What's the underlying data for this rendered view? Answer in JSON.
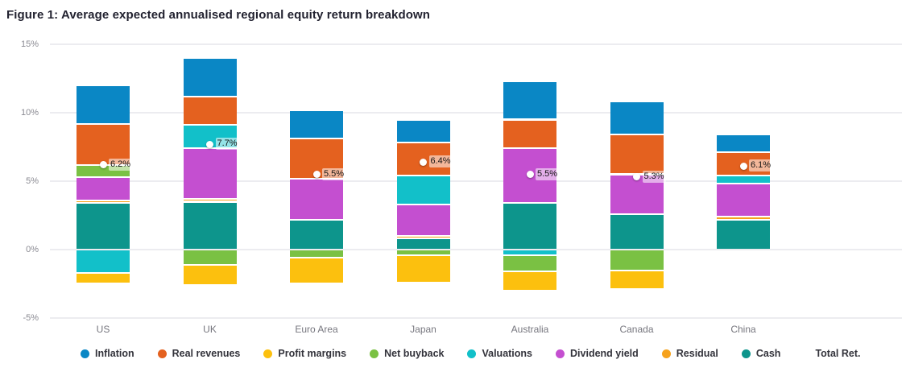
{
  "figure": {
    "title": "Figure 1: Average expected annualised regional equity return breakdown"
  },
  "chart_data": {
    "type": "bar",
    "subtype": "stacked-bar-with-total-markers",
    "title": "Figure 1: Average expected annualised regional equity return breakdown",
    "unit": "%",
    "grid": "horizontal gridlines on",
    "legend_position": "bottom",
    "ylim": [
      -5,
      15
    ],
    "yticks": [
      {
        "value": 15,
        "label": "15%"
      },
      {
        "value": 10,
        "label": "10%"
      },
      {
        "value": 5,
        "label": "5%"
      },
      {
        "value": 0,
        "label": "0%"
      },
      {
        "value": -5,
        "label": "-5%"
      }
    ],
    "categories": [
      "US",
      "UK",
      "Euro Area",
      "Japan",
      "Australia",
      "Canada",
      "China"
    ],
    "legend": [
      "Inflation",
      "Real revenues",
      "Profit margins",
      "Net buyback",
      "Valuations",
      "Dividend yield",
      "Residual",
      "Cash"
    ],
    "legend_total_label": "Total Ret.",
    "colors": {
      "Inflation": "#0a87c5",
      "Real revenues": "#e4611f",
      "Profit margins": "#fcc00e",
      "Net buyback": "#7ac143",
      "Valuations": "#12c0c9",
      "Dividend yield": "#c44fd0",
      "Residual": "#f6a21c",
      "Cash": "#0d958c",
      "total_marker": "#ffffff"
    },
    "bars": [
      {
        "category": "US",
        "total": 6.2,
        "total_label": "6.2%",
        "above_zero": [
          {
            "label": "Inflation",
            "value": 2.8
          },
          {
            "label": "Real revenues",
            "value": 3.0
          },
          {
            "label": "Net buyback",
            "value": 0.9
          },
          {
            "label": "Dividend yield",
            "value": 1.7
          },
          {
            "label": "Residual",
            "value": 0.2
          },
          {
            "label": "Cash",
            "value": 3.4
          }
        ],
        "below_zero": [
          {
            "label": "Valuations",
            "value": -1.7
          },
          {
            "label": "Profit margins",
            "value": -0.8
          }
        ]
      },
      {
        "category": "UK",
        "total": 7.7,
        "total_label": "7.7%",
        "above_zero": [
          {
            "label": "Inflation",
            "value": 2.8
          },
          {
            "label": "Real revenues",
            "value": 2.1
          },
          {
            "label": "Valuations",
            "value": 1.7
          },
          {
            "label": "Dividend yield",
            "value": 3.7
          },
          {
            "label": "Residual",
            "value": 0.2
          },
          {
            "label": "Cash",
            "value": 3.5
          }
        ],
        "below_zero": [
          {
            "label": "Net buyback",
            "value": -1.1
          },
          {
            "label": "Profit margins",
            "value": -1.5
          }
        ]
      },
      {
        "category": "Euro Area",
        "total": 5.5,
        "total_label": "5.5%",
        "above_zero": [
          {
            "label": "Inflation",
            "value": 2.1
          },
          {
            "label": "Real revenues",
            "value": 2.9
          },
          {
            "label": "Dividend yield",
            "value": 3.0
          },
          {
            "label": "Cash",
            "value": 2.2
          }
        ],
        "below_zero": [
          {
            "label": "Net buyback",
            "value": -0.6
          },
          {
            "label": "Profit margins",
            "value": -1.9
          }
        ]
      },
      {
        "category": "Japan",
        "total": 6.4,
        "total_label": "6.4%",
        "above_zero": [
          {
            "label": "Inflation",
            "value": 1.7
          },
          {
            "label": "Real revenues",
            "value": 2.4
          },
          {
            "label": "Valuations",
            "value": 2.1
          },
          {
            "label": "Dividend yield",
            "value": 2.3
          },
          {
            "label": "Residual",
            "value": 0.2
          },
          {
            "label": "Cash",
            "value": 0.8
          }
        ],
        "below_zero": [
          {
            "label": "Net buyback",
            "value": -0.4
          },
          {
            "label": "Profit margins",
            "value": -2.0
          }
        ]
      },
      {
        "category": "Australia",
        "total": 5.5,
        "total_label": "5.5%",
        "above_zero": [
          {
            "label": "Inflation",
            "value": 2.8
          },
          {
            "label": "Real revenues",
            "value": 2.1
          },
          {
            "label": "Dividend yield",
            "value": 4.0
          },
          {
            "label": "Cash",
            "value": 3.4
          }
        ],
        "below_zero": [
          {
            "label": "Valuations",
            "value": -0.4
          },
          {
            "label": "Net buyback",
            "value": -1.2
          },
          {
            "label": "Profit margins",
            "value": -1.4
          }
        ]
      },
      {
        "category": "Canada",
        "total": 5.3,
        "total_label": "5.3%",
        "above_zero": [
          {
            "label": "Inflation",
            "value": 2.4
          },
          {
            "label": "Real revenues",
            "value": 2.9
          },
          {
            "label": "Dividend yield",
            "value": 2.9
          },
          {
            "label": "Cash",
            "value": 2.6
          }
        ],
        "below_zero": [
          {
            "label": "Net buyback",
            "value": -1.5
          },
          {
            "label": "Profit margins",
            "value": -1.4
          }
        ]
      },
      {
        "category": "China",
        "total": 6.1,
        "total_label": "6.1%",
        "above_zero": [
          {
            "label": "Inflation",
            "value": 1.3
          },
          {
            "label": "Real revenues",
            "value": 1.7
          },
          {
            "label": "Valuations",
            "value": 0.6
          },
          {
            "label": "Dividend yield",
            "value": 2.4
          },
          {
            "label": "Residual",
            "value": 0.2
          },
          {
            "label": "Cash",
            "value": 2.2
          }
        ],
        "below_zero": []
      }
    ]
  }
}
